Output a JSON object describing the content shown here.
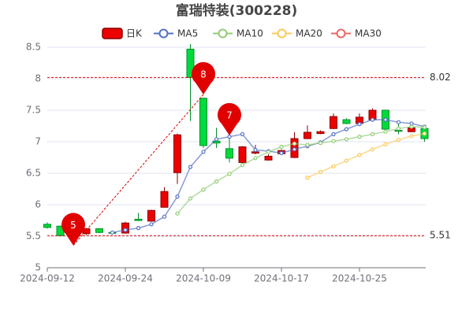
{
  "chart_data": {
    "type": "candlestick",
    "title": "富瑞特装(300228)",
    "categories": [
      "2024-09-12",
      null,
      null,
      null,
      null,
      null,
      "2024-09-24",
      null,
      null,
      null,
      null,
      null,
      "2024-10-09",
      null,
      null,
      null,
      null,
      null,
      "2024-10-17",
      null,
      null,
      null,
      null,
      null,
      "2024-10-25",
      null,
      null,
      null,
      null,
      null
    ],
    "series": [
      {
        "name": "日K",
        "up_color": "#ec0000",
        "up_border": "#8a0000",
        "down_color": "#00da3c",
        "down_border": "#008f28",
        "open": [
          5.69,
          5.66,
          5.53,
          5.54,
          5.62,
          5.56,
          5.55,
          5.77,
          5.74,
          5.96,
          6.51,
          8.47,
          7.69,
          7.01,
          6.89,
          6.67,
          6.82,
          6.71,
          6.81,
          6.75,
          7.05,
          7.13,
          7.21,
          7.35,
          7.29,
          7.35,
          7.5,
          7.18,
          7.16,
          7.21
        ],
        "close": [
          5.64,
          5.51,
          5.56,
          5.62,
          5.56,
          5.55,
          5.71,
          5.75,
          5.91,
          6.21,
          7.11,
          8.02,
          6.94,
          6.98,
          6.74,
          6.92,
          6.84,
          6.77,
          6.86,
          7.05,
          7.15,
          7.16,
          7.4,
          7.29,
          7.39,
          7.5,
          7.2,
          7.17,
          7.22,
          7.05
        ],
        "high": [
          5.72,
          5.67,
          5.6,
          5.63,
          5.63,
          5.58,
          5.73,
          5.87,
          5.92,
          6.28,
          7.13,
          8.55,
          7.7,
          7.22,
          7.05,
          6.93,
          6.95,
          6.8,
          6.88,
          7.15,
          7.26,
          7.18,
          7.45,
          7.37,
          7.45,
          7.53,
          7.51,
          7.28,
          7.25,
          7.24
        ],
        "low": [
          5.62,
          5.5,
          5.43,
          5.52,
          5.55,
          5.53,
          5.54,
          5.74,
          5.73,
          5.96,
          6.33,
          7.33,
          6.9,
          6.9,
          6.67,
          6.66,
          6.8,
          6.7,
          6.8,
          6.74,
          7.04,
          7.12,
          7.2,
          7.28,
          7.28,
          7.34,
          7.18,
          7.12,
          7.15,
          7.0
        ]
      }
    ],
    "ma_series": [
      {
        "name": "MA5",
        "color": "#5470c6",
        "values": [
          null,
          null,
          null,
          null,
          null,
          5.56,
          5.6,
          5.63,
          5.69,
          5.81,
          6.13,
          6.6,
          6.84,
          7.04,
          7.08,
          7.12,
          6.87,
          6.85,
          6.82,
          6.88,
          6.93,
          6.99,
          7.12,
          7.2,
          7.28,
          7.35,
          7.35,
          7.31,
          7.29,
          7.24
        ]
      },
      {
        "name": "MA10",
        "color": "#91cc75",
        "values": [
          null,
          null,
          null,
          null,
          null,
          null,
          null,
          null,
          null,
          null,
          5.86,
          6.1,
          6.24,
          6.37,
          6.49,
          6.63,
          6.74,
          6.84,
          6.92,
          6.97,
          6.95,
          6.98,
          7.01,
          7.04,
          7.08,
          7.12,
          7.16,
          7.21,
          7.24,
          7.23
        ]
      },
      {
        "name": "MA20",
        "color": "#fac858",
        "values": [
          null,
          null,
          null,
          null,
          null,
          null,
          null,
          null,
          null,
          null,
          null,
          null,
          null,
          null,
          null,
          null,
          null,
          null,
          null,
          null,
          6.43,
          6.52,
          6.61,
          6.7,
          6.79,
          6.88,
          6.96,
          7.03,
          7.09,
          7.13
        ]
      },
      {
        "name": "MA30",
        "color": "#ee6666",
        "values": [
          null,
          null,
          null,
          null,
          null,
          null,
          null,
          null,
          null,
          null,
          null,
          null,
          null,
          null,
          null,
          null,
          null,
          null,
          null,
          null,
          null,
          null,
          null,
          null,
          null,
          null,
          null,
          null,
          null,
          null
        ]
      }
    ],
    "ylim": [
      5,
      8.5
    ],
    "yticks": [
      5,
      5.5,
      6,
      6.5,
      7,
      7.5,
      8,
      8.5
    ],
    "grid": true,
    "ref_lines": [
      8.02,
      5.51
    ],
    "mark_points": [
      {
        "label": "8",
        "value": 8,
        "at": "high"
      },
      {
        "label": "5",
        "value": 5,
        "at": "low"
      },
      {
        "label": "7",
        "value": 7,
        "at": "high"
      }
    ]
  }
}
